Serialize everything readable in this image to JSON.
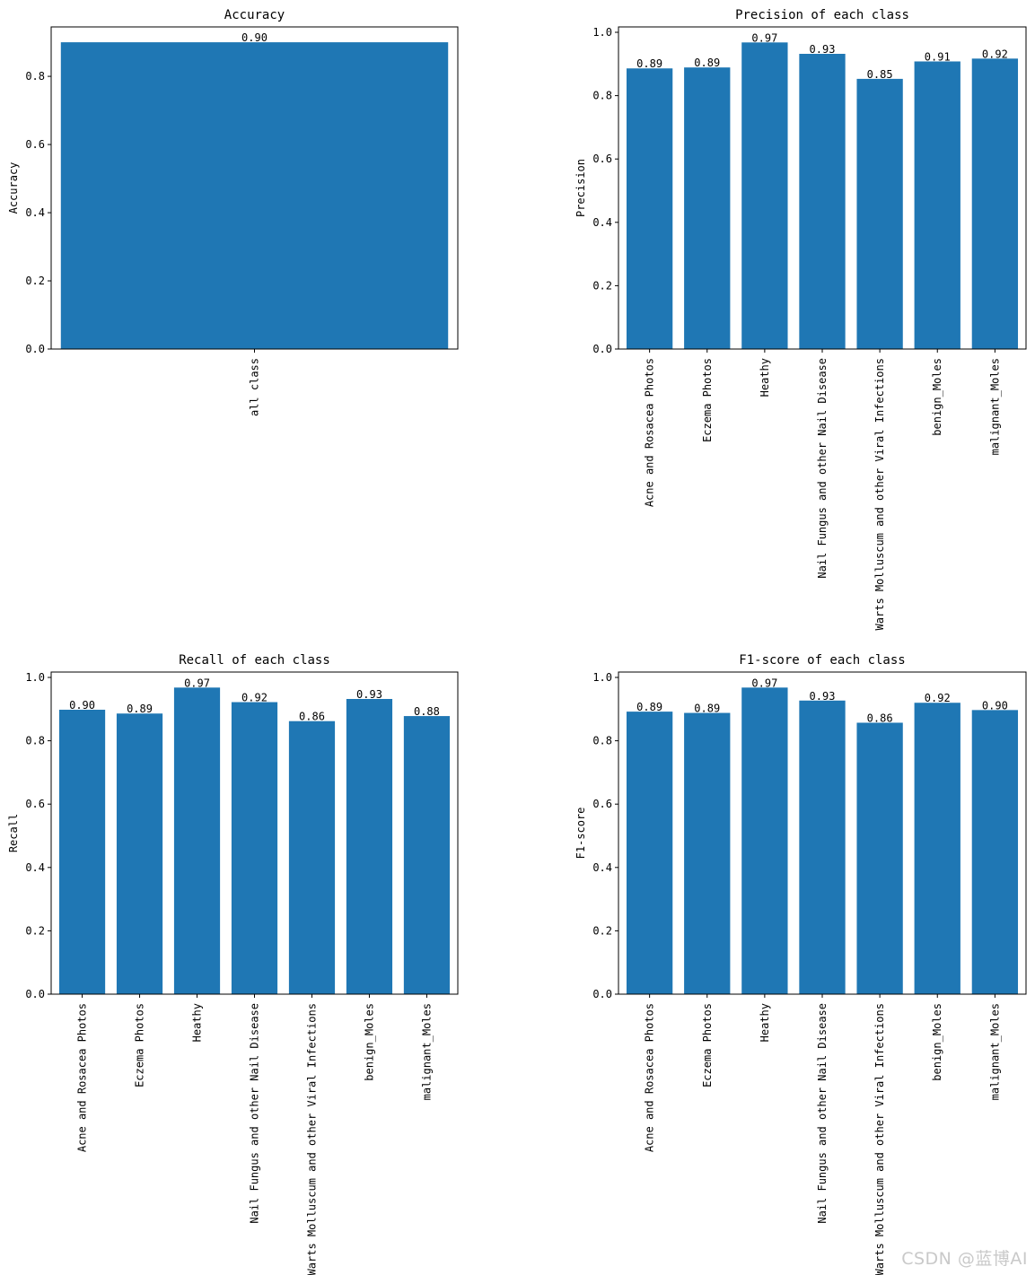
{
  "colors": {
    "bar": "#1f77b4",
    "axis": "#000000",
    "background": "#ffffff"
  },
  "watermark": "CSDN @蓝博AI",
  "chart_data": [
    {
      "type": "bar",
      "title": "Accuracy",
      "ylabel": "Accuracy",
      "xlabel": "",
      "categories": [
        "all class"
      ],
      "values": [
        0.9
      ],
      "value_labels": [
        "0.90"
      ],
      "ylim": [
        0,
        0.945
      ],
      "yticks": [
        0.0,
        0.2,
        0.4,
        0.6,
        0.8
      ],
      "ytick_labels": [
        "0.0",
        "0.2",
        "0.4",
        "0.6",
        "0.8"
      ]
    },
    {
      "type": "bar",
      "title": "Precision of each class",
      "ylabel": "Precision",
      "xlabel": "",
      "categories": [
        "Acne and Rosacea Photos",
        "Eczema Photos",
        "Heathy",
        "Nail Fungus and other Nail Disease",
        "Warts Molluscum and other Viral Infections",
        "benign_Moles",
        "malignant_Moles"
      ],
      "values": [
        0.886,
        0.889,
        0.968,
        0.932,
        0.853,
        0.908,
        0.917
      ],
      "value_labels": [
        "0.89",
        "0.89",
        "0.97",
        "0.93",
        "0.85",
        "0.91",
        "0.92"
      ],
      "ylim": [
        0,
        1.017
      ],
      "yticks": [
        0.0,
        0.2,
        0.4,
        0.6,
        0.8,
        1.0
      ],
      "ytick_labels": [
        "0.0",
        "0.2",
        "0.4",
        "0.6",
        "0.8",
        "1.0"
      ]
    },
    {
      "type": "bar",
      "title": "Recall of each class",
      "ylabel": "Recall",
      "xlabel": "",
      "categories": [
        "Acne and Rosacea Photos",
        "Eczema Photos",
        "Heathy",
        "Nail Fungus and other Nail Disease",
        "Warts Molluscum and other Viral Infections",
        "benign_Moles",
        "malignant_Moles"
      ],
      "values": [
        0.898,
        0.886,
        0.968,
        0.922,
        0.862,
        0.932,
        0.878
      ],
      "value_labels": [
        "0.90",
        "0.89",
        "0.97",
        "0.92",
        "0.86",
        "0.93",
        "0.88"
      ],
      "ylim": [
        0,
        1.017
      ],
      "yticks": [
        0.0,
        0.2,
        0.4,
        0.6,
        0.8,
        1.0
      ],
      "ytick_labels": [
        "0.0",
        "0.2",
        "0.4",
        "0.6",
        "0.8",
        "1.0"
      ]
    },
    {
      "type": "bar",
      "title": "F1-score of each class",
      "ylabel": "F1-score",
      "xlabel": "",
      "categories": [
        "Acne and Rosacea Photos",
        "Eczema Photos",
        "Heathy",
        "Nail Fungus and other Nail Disease",
        "Warts Molluscum and other Viral Infections",
        "benign_Moles",
        "malignant_Moles"
      ],
      "values": [
        0.892,
        0.888,
        0.968,
        0.927,
        0.857,
        0.92,
        0.897
      ],
      "value_labels": [
        "0.89",
        "0.89",
        "0.97",
        "0.93",
        "0.86",
        "0.92",
        "0.90"
      ],
      "ylim": [
        0,
        1.017
      ],
      "yticks": [
        0.0,
        0.2,
        0.4,
        0.6,
        0.8,
        1.0
      ],
      "ytick_labels": [
        "0.0",
        "0.2",
        "0.4",
        "0.6",
        "0.8",
        "1.0"
      ]
    }
  ]
}
